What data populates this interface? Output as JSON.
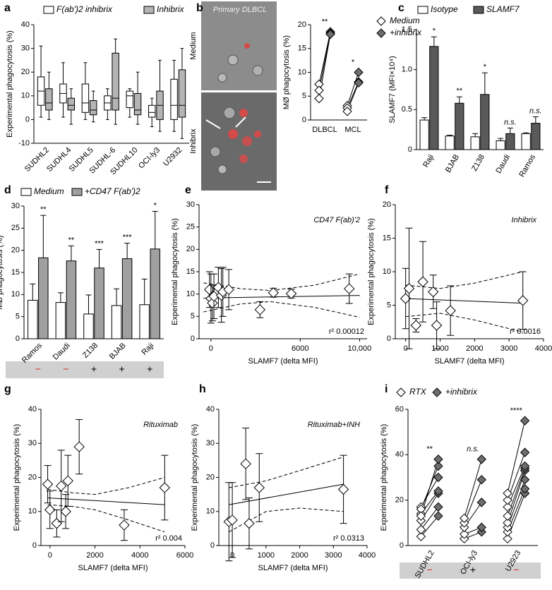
{
  "chart_data": [
    {
      "type": "box",
      "label": "a",
      "ylabel": "Experimental phagocytosis (%)",
      "categories": [
        "SUDHL2",
        "SUDHL4",
        "SUDHL5",
        "SUDHL-6",
        "SUDHL10",
        "OCI-ly3",
        "U2932"
      ],
      "series": [
        {
          "name": "F(ab')2 inhibrix",
          "color": "#ffffff",
          "values": [
            [
              1,
              6,
              12,
              18,
              31
            ],
            [
              1,
              7,
              11,
              15,
              24
            ],
            [
              0,
              3,
              7,
              15,
              24
            ],
            [
              0,
              4,
              7,
              10,
              13
            ],
            [
              1,
              5,
              10,
              12,
              13
            ],
            [
              -3,
              1,
              3,
              6,
              9
            ],
            [
              -5,
              0,
              6,
              17,
              25
            ]
          ]
        },
        {
          "name": "Inhibrix",
          "color": "#b4b4b4",
          "values": [
            [
              0,
              4,
              7,
              13,
              20
            ],
            [
              -2,
              4,
              6,
              9,
              13
            ],
            [
              -1,
              2,
              4,
              8,
              12
            ],
            [
              -2,
              4,
              9,
              28,
              34
            ],
            [
              -2,
              2,
              4,
              11,
              20
            ],
            [
              -5,
              0,
              6,
              12,
              25
            ],
            [
              -8,
              1,
              6,
              21,
              30
            ]
          ]
        }
      ],
      "ylim": [
        -10,
        40
      ],
      "yticks": [
        -10,
        0,
        10,
        20,
        30,
        40
      ],
      "legend": "top"
    },
    {
      "type": "paired",
      "label": "b",
      "image_title": "Primary DLBCL",
      "image_rows": [
        "Medium",
        "Inhibrix"
      ],
      "ylabel": "MØ phagocytosis (%)",
      "categories": [
        "DLBCL",
        "MCL"
      ],
      "series": [
        {
          "name": "Medium",
          "color": "#ffffff",
          "values": [
            [
              7.5,
              6.2,
              4.5
            ],
            [
              3,
              2.5,
              1.8
            ]
          ]
        },
        {
          "name": "+inhibrix",
          "color": "#6e6e6e",
          "values": [
            [
              18.5,
              18.2,
              18
            ],
            [
              10,
              8,
              7.8
            ]
          ]
        }
      ],
      "stars": [
        "**",
        "*"
      ],
      "ylim": [
        0,
        20
      ],
      "yticks": [
        0,
        5,
        10,
        15,
        20
      ],
      "legend": "right"
    },
    {
      "type": "bar",
      "label": "c",
      "ylabel": "SLAMF7 (MFI×10⁴)",
      "categories": [
        "Raji",
        "BJAB",
        "Z138",
        "Daudi",
        "Ramos"
      ],
      "series": [
        {
          "name": "Isotype",
          "color": "#ffffff",
          "values": [
            0.37,
            0.17,
            0.16,
            0.11,
            0.2
          ],
          "errors": [
            0.03,
            0.01,
            0.04,
            0.03,
            0.01
          ]
        },
        {
          "name": "SLAMF7",
          "color": "#5a5a5a",
          "values": [
            1.29,
            0.58,
            0.69,
            0.2,
            0.33
          ],
          "errors": [
            0.12,
            0.08,
            0.27,
            0.07,
            0.08
          ]
        }
      ],
      "stars": [
        "*",
        "**",
        "*",
        "n.s.",
        "n.s."
      ],
      "ylim": [
        0,
        1.5
      ],
      "yticks": [
        0,
        0.5,
        {
          "value": 1,
          "label": "1.0"
        },
        1.5
      ],
      "legend": "top"
    },
    {
      "type": "bar",
      "label": "d",
      "ylabel": "MØ phagocytosis (%)",
      "categories": [
        "Ramos",
        "Daudi",
        "Z138",
        "BJAB",
        "Raji"
      ],
      "series": [
        {
          "name": "Medium",
          "color": "#ffffff",
          "values": [
            8.7,
            8.2,
            5.6,
            7.5,
            7.7
          ],
          "errors": [
            3.7,
            2.2,
            4.3,
            3.8,
            5.8
          ]
        },
        {
          "name": "+CD47 F(ab')2",
          "color": "#a0a0a0",
          "values": [
            18.3,
            17.6,
            16,
            18.1,
            20.3
          ],
          "errors": [
            9.6,
            3.4,
            4.2,
            3.5,
            8.5
          ]
        }
      ],
      "stars": [
        "**",
        "**",
        "***",
        "***",
        "*"
      ],
      "strip": [
        "−",
        "−",
        "+",
        "+",
        "+"
      ],
      "strip_colors": [
        "#d62728",
        "#d62728",
        "#000000",
        "#000000",
        "#000000"
      ],
      "ylim": [
        0,
        30
      ],
      "yticks": [
        0,
        5,
        10,
        15,
        20,
        25,
        30
      ],
      "legend": "top"
    },
    {
      "type": "scatter",
      "label": "e",
      "title": "CD47 F(ab)'2",
      "annotation": "r² 0.00012",
      "xlabel": "SLAMF7 (delta MFI)",
      "ylabel": "Experimental phagocytosis (%)",
      "x": [
        -100,
        0,
        100,
        200,
        500,
        700,
        800,
        1200,
        3300,
        4200,
        5400,
        9300
      ],
      "values": [
        11,
        9,
        8,
        9.5,
        11.5,
        9.7,
        10.5,
        11,
        6.5,
        10.3,
        10.1,
        11.2
      ],
      "errors": [
        4,
        5.5,
        4,
        5,
        4.5,
        6,
        5.5,
        4.5,
        1.8,
        1,
        1,
        3.3
      ],
      "fit": {
        "x": [
          -500,
          10000
        ],
        "y": [
          9.1,
          9.7
        ]
      },
      "ci_upper": {
        "x": [
          -500,
          2000,
          4000,
          7000,
          10000
        ],
        "y": [
          12.5,
          11.2,
          10.8,
          12,
          14.5
        ]
      },
      "ci_lower": {
        "x": [
          -500,
          2000,
          4000,
          7000,
          10000
        ],
        "y": [
          6,
          7.8,
          8.3,
          7,
          4.8
        ]
      },
      "xlim": [
        -800,
        10500
      ],
      "xticks": [
        0,
        6000,
        {
          "value": 10000,
          "label": "10,000"
        }
      ],
      "ylim": [
        0,
        30
      ],
      "yticks": [
        0,
        5,
        10,
        15,
        20,
        25,
        30
      ]
    },
    {
      "type": "scatter",
      "label": "f",
      "title": "Inhibrix",
      "annotation": "r² 0.0016",
      "xlabel": "SLAMF7 (delta MFI)",
      "ylabel": "Experimental phagocytosis (%)",
      "x": [
        0,
        100,
        300,
        500,
        800,
        900,
        1300,
        3400
      ],
      "values": [
        6,
        7.5,
        2,
        8.5,
        7,
        2,
        4.2,
        5.7
      ],
      "errors": [
        4.5,
        9,
        1,
        6,
        2.5,
        3.5,
        3.7,
        4.3
      ],
      "fit": {
        "x": [
          0,
          3400
        ],
        "y": [
          6,
          5.3
        ]
      },
      "ci_upper": {
        "x": [
          0,
          1000,
          2000,
          3400
        ],
        "y": [
          8,
          7.5,
          8.3,
          10
        ]
      },
      "ci_lower": {
        "x": [
          0,
          1000,
          2000,
          3400
        ],
        "y": [
          3.3,
          3.8,
          2.8,
          1
        ]
      },
      "xlim": [
        -300,
        4000
      ],
      "xticks": [
        0,
        1000,
        2000,
        3000,
        4000
      ],
      "ylim": [
        0,
        20
      ],
      "yticks": [
        0,
        5,
        10,
        15,
        20
      ]
    },
    {
      "type": "scatter",
      "label": "g",
      "title": "Rituximab",
      "annotation": "r² 0.004",
      "xlabel": "SLAMF7 (delta MFI)",
      "ylabel": "Experimental phagocytosis (%)",
      "x": [
        -100,
        0,
        300,
        500,
        700,
        800,
        1300,
        3300,
        5100
      ],
      "values": [
        18,
        10.5,
        6.5,
        17.5,
        10,
        19,
        29,
        6,
        17
      ],
      "errors": [
        5.5,
        5.5,
        4,
        10.5,
        5,
        7.5,
        8,
        4.5,
        9.5
      ],
      "fit": {
        "x": [
          -100,
          5100
        ],
        "y": [
          14,
          12
        ]
      },
      "ci_upper": {
        "x": [
          -100,
          1000,
          2000,
          3500,
          5100
        ],
        "y": [
          16.5,
          15.5,
          15,
          17,
          20
        ]
      },
      "ci_lower": {
        "x": [
          -100,
          1000,
          2000,
          3500,
          5100
        ],
        "y": [
          12,
          11.5,
          10.5,
          7.5,
          4
        ]
      },
      "xlim": [
        -400,
        6000
      ],
      "xticks": [
        0,
        2000,
        4000,
        6000
      ],
      "ylim": [
        0,
        40
      ],
      "yticks": [
        0,
        10,
        20,
        30,
        40
      ]
    },
    {
      "type": "scatter",
      "label": "h",
      "title": "Rituximab+INH",
      "annotation": "r² 0.0313",
      "xlabel": "SLAMF7 (delta MFI)",
      "ylabel": "Experimental phagocytosis (%)",
      "x": [
        -100,
        0,
        400,
        500,
        800,
        3300
      ],
      "values": [
        7,
        7.5,
        24,
        6.5,
        17,
        16.5
      ],
      "errors": [
        11.5,
        11,
        10.5,
        7.5,
        10,
        10
      ],
      "fit": {
        "x": [
          -100,
          3300
        ],
        "y": [
          12,
          18
        ]
      },
      "ci_upper": {
        "x": [
          -100,
          1000,
          2000,
          3300
        ],
        "y": [
          17,
          19,
          22,
          26
        ]
      },
      "ci_lower": {
        "x": [
          -100,
          1000,
          2000,
          3300
        ],
        "y": [
          4,
          10,
          11,
          10
        ]
      },
      "xlim": [
        -400,
        4000
      ],
      "xticks": [
        0,
        1000,
        2000,
        3000,
        4000
      ],
      "ylim": [
        0,
        40
      ],
      "yticks": [
        0,
        10,
        20,
        30,
        40
      ]
    },
    {
      "type": "paired",
      "label": "i",
      "ylabel": "Experimental phagocytosis (%)",
      "categories": [
        "SUDHL2",
        "OCI-ly3",
        "U2923"
      ],
      "series": [
        {
          "name": "RTX",
          "color": "#ffffff",
          "values": [
            [
              4,
              7,
              11,
              14,
              17,
              16,
              13
            ],
            [
              3,
              5,
              8,
              10,
              12
            ],
            [
              3,
              6,
              8,
              10,
              13,
              17,
              20,
              23
            ]
          ]
        },
        {
          "name": "+inhibrix",
          "color": "#6e6e6e",
          "values": [
            [
              13,
              17,
              23,
              24,
              30,
              35,
              38
            ],
            [
              6,
              8,
              19,
              29,
              38
            ],
            [
              23,
              25,
              29,
              33,
              34,
              35,
              41,
              55
            ]
          ]
        }
      ],
      "stars": [
        "**",
        "n.s.",
        "****"
      ],
      "strip": [
        "−",
        "+",
        "−"
      ],
      "strip_colors": [
        "#d62728",
        "#000000",
        "#d62728"
      ],
      "ylim": [
        0,
        60
      ],
      "yticks": [
        0,
        20,
        40,
        60
      ],
      "legend": "top"
    }
  ]
}
